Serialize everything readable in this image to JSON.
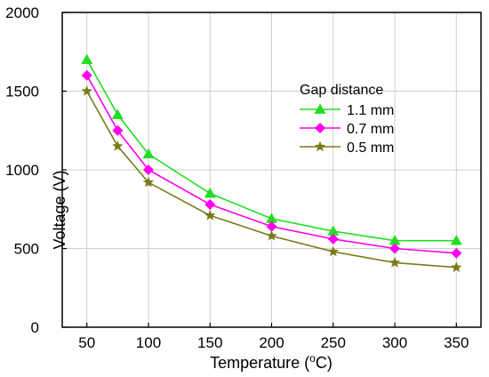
{
  "chart_data": {
    "type": "line",
    "xlabel_prefix": "Temperature (",
    "xlabel_sup": "o",
    "xlabel_suffix": "C)",
    "ylabel": "Voltage (V)",
    "xlim": [
      30,
      370
    ],
    "ylim": [
      0,
      2000
    ],
    "x_ticks": [
      50,
      100,
      150,
      200,
      250,
      300,
      350
    ],
    "y_ticks": [
      0,
      500,
      1000,
      1500,
      2000
    ],
    "grid": true,
    "legend_title": "Gap distance",
    "legend_position": "top-right",
    "x": [
      50,
      75,
      100,
      150,
      200,
      250,
      300,
      350
    ],
    "series": [
      {
        "name": "1.1 mm",
        "color": "#22dd22",
        "marker": "triangle",
        "values": [
          1700,
          1350,
          1100,
          850,
          690,
          610,
          550,
          550
        ]
      },
      {
        "name": "0.7 mm",
        "color": "#ff00ee",
        "marker": "diamond",
        "values": [
          1600,
          1250,
          1000,
          780,
          640,
          560,
          500,
          470
        ]
      },
      {
        "name": "0.5 mm",
        "color": "#7a7a1a",
        "marker": "star",
        "values": [
          1500,
          1150,
          920,
          710,
          580,
          480,
          410,
          380
        ]
      }
    ]
  }
}
